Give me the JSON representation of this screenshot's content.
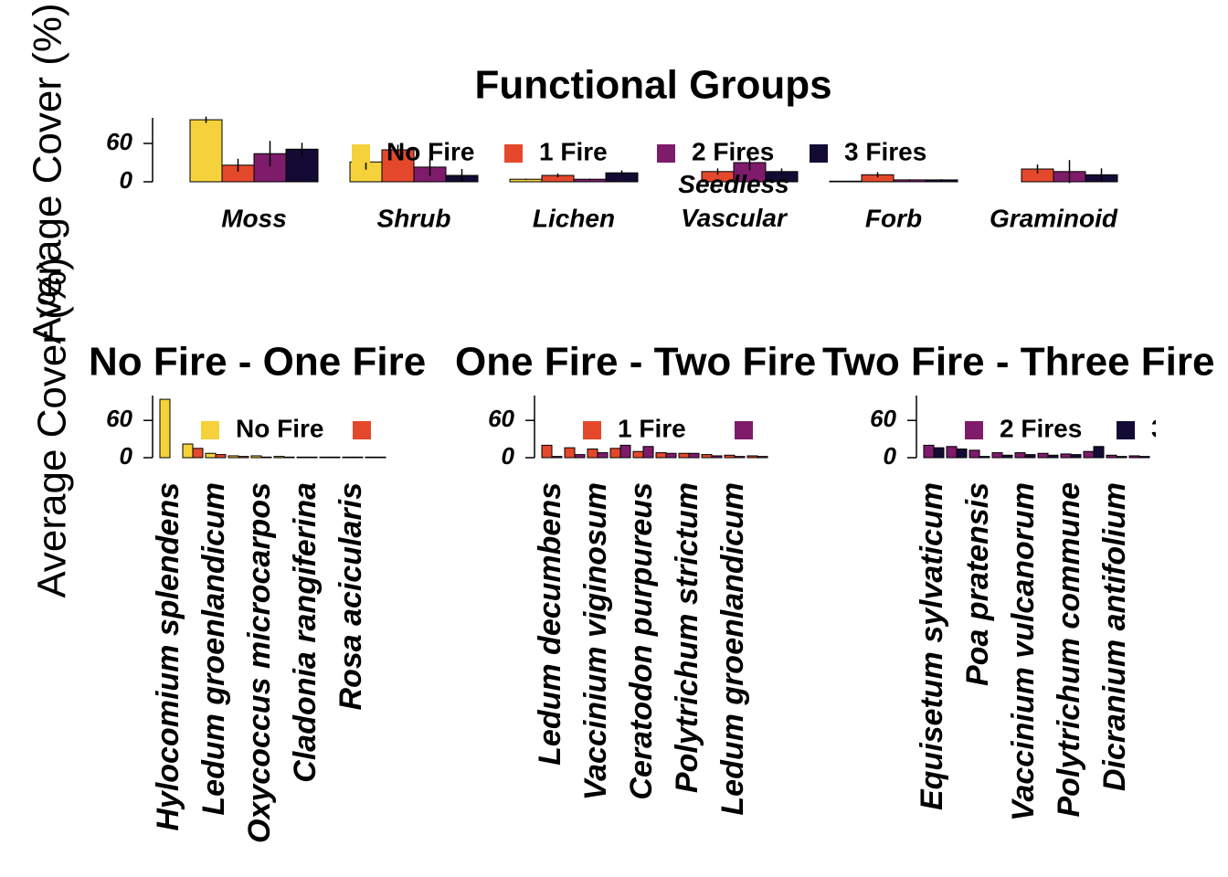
{
  "chart_data": [
    {
      "type": "bar",
      "title": "Functional Groups",
      "ylabel": "Average Cover (%)",
      "categories": [
        "Moss",
        "Shrub",
        "Lichen",
        "Seedless Vascular",
        "Forb",
        "Graminoid"
      ],
      "series": [
        {
          "name": "No Fire",
          "color": "#f5d13c",
          "values": [
            97,
            31,
            4,
            0,
            1,
            0
          ],
          "errors": [
            5,
            12,
            1,
            0,
            0,
            0
          ]
        },
        {
          "name": "1 Fire",
          "color": "#e4482b",
          "values": [
            26,
            50,
            10,
            16,
            11,
            20
          ],
          "errors": [
            10,
            8,
            3,
            5,
            4,
            7
          ]
        },
        {
          "name": "2 Fires",
          "color": "#7e1b6b",
          "values": [
            44,
            23,
            4,
            30,
            3,
            16
          ],
          "errors": [
            20,
            14,
            1,
            12,
            1,
            18
          ]
        },
        {
          "name": "3 Fires",
          "color": "#140b34",
          "values": [
            51,
            10,
            14,
            16,
            3,
            11
          ],
          "errors": [
            10,
            10,
            4,
            5,
            1,
            10
          ]
        }
      ],
      "ylim": [
        0,
        100
      ],
      "yticks": [
        0,
        60
      ]
    },
    {
      "type": "bar",
      "title": "No Fire - One Fire",
      "ylabel": "Average Cover (%)",
      "categories": [
        "Hylocomium splendens",
        null,
        "Ledum groenlandicum",
        null,
        "Oxycoccus microcarpos",
        null,
        "Cladonia rangiferina",
        null,
        "Rosa acicularis",
        null
      ],
      "series": [
        {
          "name": "No Fire",
          "color": "#f5d13c",
          "values": [
            94,
            22,
            7,
            3,
            3,
            2,
            1,
            1,
            1,
            1
          ]
        },
        {
          "name": "1 Fire",
          "color": "#e4482b",
          "values": [
            0,
            15,
            5,
            2,
            1,
            1,
            1,
            1,
            1,
            1
          ]
        }
      ],
      "ylim": [
        0,
        100
      ],
      "yticks": [
        0,
        60
      ]
    },
    {
      "type": "bar",
      "title": "One Fire - Two Fire",
      "categories": [
        "Ledum decumbens",
        null,
        "Vaccinium viginosum",
        null,
        "Ceratodon purpureus",
        null,
        "Polytrichum strictum",
        null,
        "Ledum groenlandicum",
        null
      ],
      "series": [
        {
          "name": "1 Fire",
          "color": "#e4482b",
          "values": [
            20,
            16,
            14,
            15,
            10,
            8,
            7,
            5,
            4,
            3
          ]
        },
        {
          "name": "2 Fires",
          "color": "#7e1b6b",
          "values": [
            2,
            5,
            8,
            20,
            18,
            7,
            7,
            3,
            2,
            2
          ]
        }
      ],
      "ylim": [
        0,
        100
      ],
      "yticks": [
        0,
        60
      ]
    },
    {
      "type": "bar",
      "title": "Two Fire - Three Fire",
      "categories": [
        "Equisetum sylvaticum",
        null,
        "Poa pratensis",
        null,
        "Vaccinium vulcanorum",
        null,
        "Polytrichum commune",
        null,
        "Dicranium antifolium",
        null
      ],
      "series": [
        {
          "name": "2 Fires",
          "color": "#7e1b6b",
          "values": [
            20,
            18,
            12,
            8,
            8,
            7,
            6,
            10,
            4,
            3
          ]
        },
        {
          "name": "3 Fires",
          "color": "#140b34",
          "values": [
            16,
            14,
            2,
            4,
            5,
            4,
            5,
            18,
            2,
            2
          ]
        }
      ],
      "ylim": [
        0,
        100
      ],
      "yticks": [
        0,
        60
      ]
    }
  ]
}
